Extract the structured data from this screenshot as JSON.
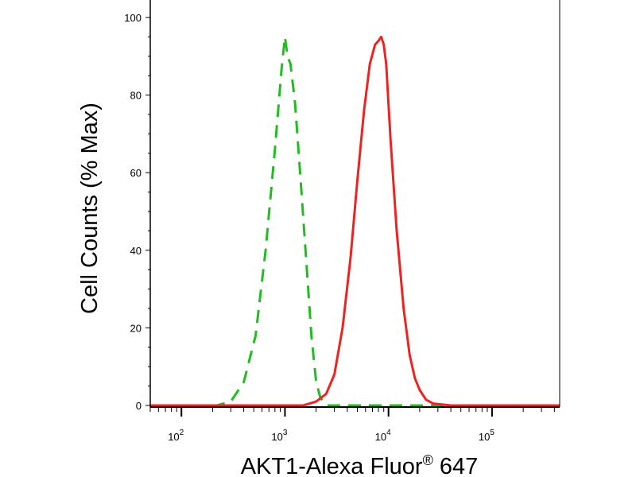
{
  "chart_data": {
    "type": "line",
    "xlabel": "AKT1-Alexa Fluor",
    "xlabel_sup": "®",
    "xlabel_tail": " 647",
    "ylabel": "Cell Counts (% Max)",
    "xscale": "log",
    "xlim": [
      50,
      450000
    ],
    "ylim": [
      0,
      100
    ],
    "x_ticks": [
      {
        "base": "10",
        "exp": "2",
        "value": 100
      },
      {
        "base": "10",
        "exp": "3",
        "value": 1000
      },
      {
        "base": "10",
        "exp": "4",
        "value": 10000
      },
      {
        "base": "10",
        "exp": "5",
        "value": 100000
      }
    ],
    "y_ticks": [
      {
        "label": "0",
        "value": 0
      },
      {
        "label": "20",
        "value": 20
      },
      {
        "label": "40",
        "value": 40
      },
      {
        "label": "60",
        "value": 60
      },
      {
        "label": "80",
        "value": 80
      },
      {
        "label": "100",
        "value": 100
      }
    ],
    "grid": false,
    "legend": "none",
    "series": [
      {
        "color": "#22bb22",
        "dash": "dashed",
        "x": [
          50,
          150,
          220,
          300,
          400,
          520,
          650,
          800,
          930,
          1000,
          1060,
          1130,
          1250,
          1400,
          1600,
          1800,
          2000,
          2200,
          2500,
          5000,
          10000,
          50000,
          450000
        ],
        "y": [
          0,
          0,
          0,
          1,
          6,
          18,
          40,
          66,
          87,
          95,
          90,
          88,
          78,
          60,
          38,
          18,
          6,
          2,
          0,
          0,
          0,
          0,
          0
        ]
      },
      {
        "color": "#ee2222",
        "dash": "solid",
        "x": [
          50,
          500,
          1000,
          1500,
          2000,
          2500,
          3000,
          3600,
          4300,
          5000,
          5800,
          6600,
          7400,
          8000,
          8500,
          9000,
          9500,
          10500,
          12000,
          14000,
          16000,
          18000,
          20000,
          23000,
          27000,
          40000,
          100000,
          450000
        ],
        "y": [
          0,
          0,
          0,
          0,
          1,
          3,
          8,
          20,
          38,
          58,
          76,
          88,
          93,
          94,
          95,
          93,
          88,
          68,
          45,
          25,
          13,
          7,
          4,
          1.5,
          0.5,
          0,
          0,
          0
        ]
      }
    ]
  }
}
